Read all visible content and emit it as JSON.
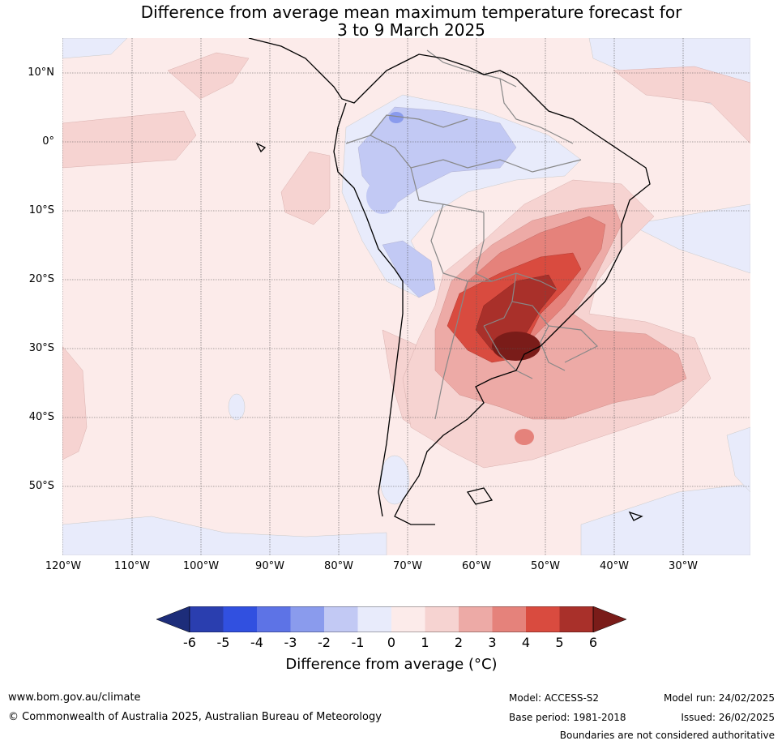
{
  "title": {
    "line1": "Difference from average mean maximum temperature forecast for",
    "line2": "3 to 9 March 2025"
  },
  "map": {
    "lat_labels": [
      "10°N",
      "0°",
      "10°S",
      "20°S",
      "30°S",
      "40°S",
      "50°S"
    ],
    "lon_labels": [
      "120°W",
      "110°W",
      "100°W",
      "90°W",
      "80°W",
      "70°W",
      "60°W",
      "50°W",
      "40°W",
      "30°W"
    ],
    "anomaly_colors": {
      "cold_-6": "#1d2d7a",
      "cold_-5": "#2a3eaf",
      "cold_-4": "#3150e0",
      "cold_-3": "#5d73e6",
      "cold_-2": "#8a9bed",
      "cold_-1": "#c2c9f4",
      "cold_0": "#e8ebfb",
      "warm_0": "#fcebea",
      "warm_1": "#f6d3d1",
      "warm_2": "#edaaa6",
      "warm_3": "#e5827b",
      "warm_4": "#d94b3f",
      "warm_5": "#a9302a",
      "warm_6": "#7a1c19"
    }
  },
  "colorbar": {
    "ticks": [
      "-6",
      "-5",
      "-4",
      "-3",
      "-2",
      "-1",
      "0",
      "1",
      "2",
      "3",
      "4",
      "5",
      "6"
    ],
    "label": "Difference from average (°C)"
  },
  "footer": {
    "website": "www.bom.gov.au/climate",
    "copyright": "© Commonwealth of Australia 2025, Australian Bureau of Meteorology",
    "model": "Model: ACCESS-S2",
    "base_period": "Base period: 1981-2018",
    "model_run": "Model run: 24/02/2025",
    "issued": "Issued: 26/02/2025",
    "disclaimer": "Boundaries are not considered authoritative"
  }
}
